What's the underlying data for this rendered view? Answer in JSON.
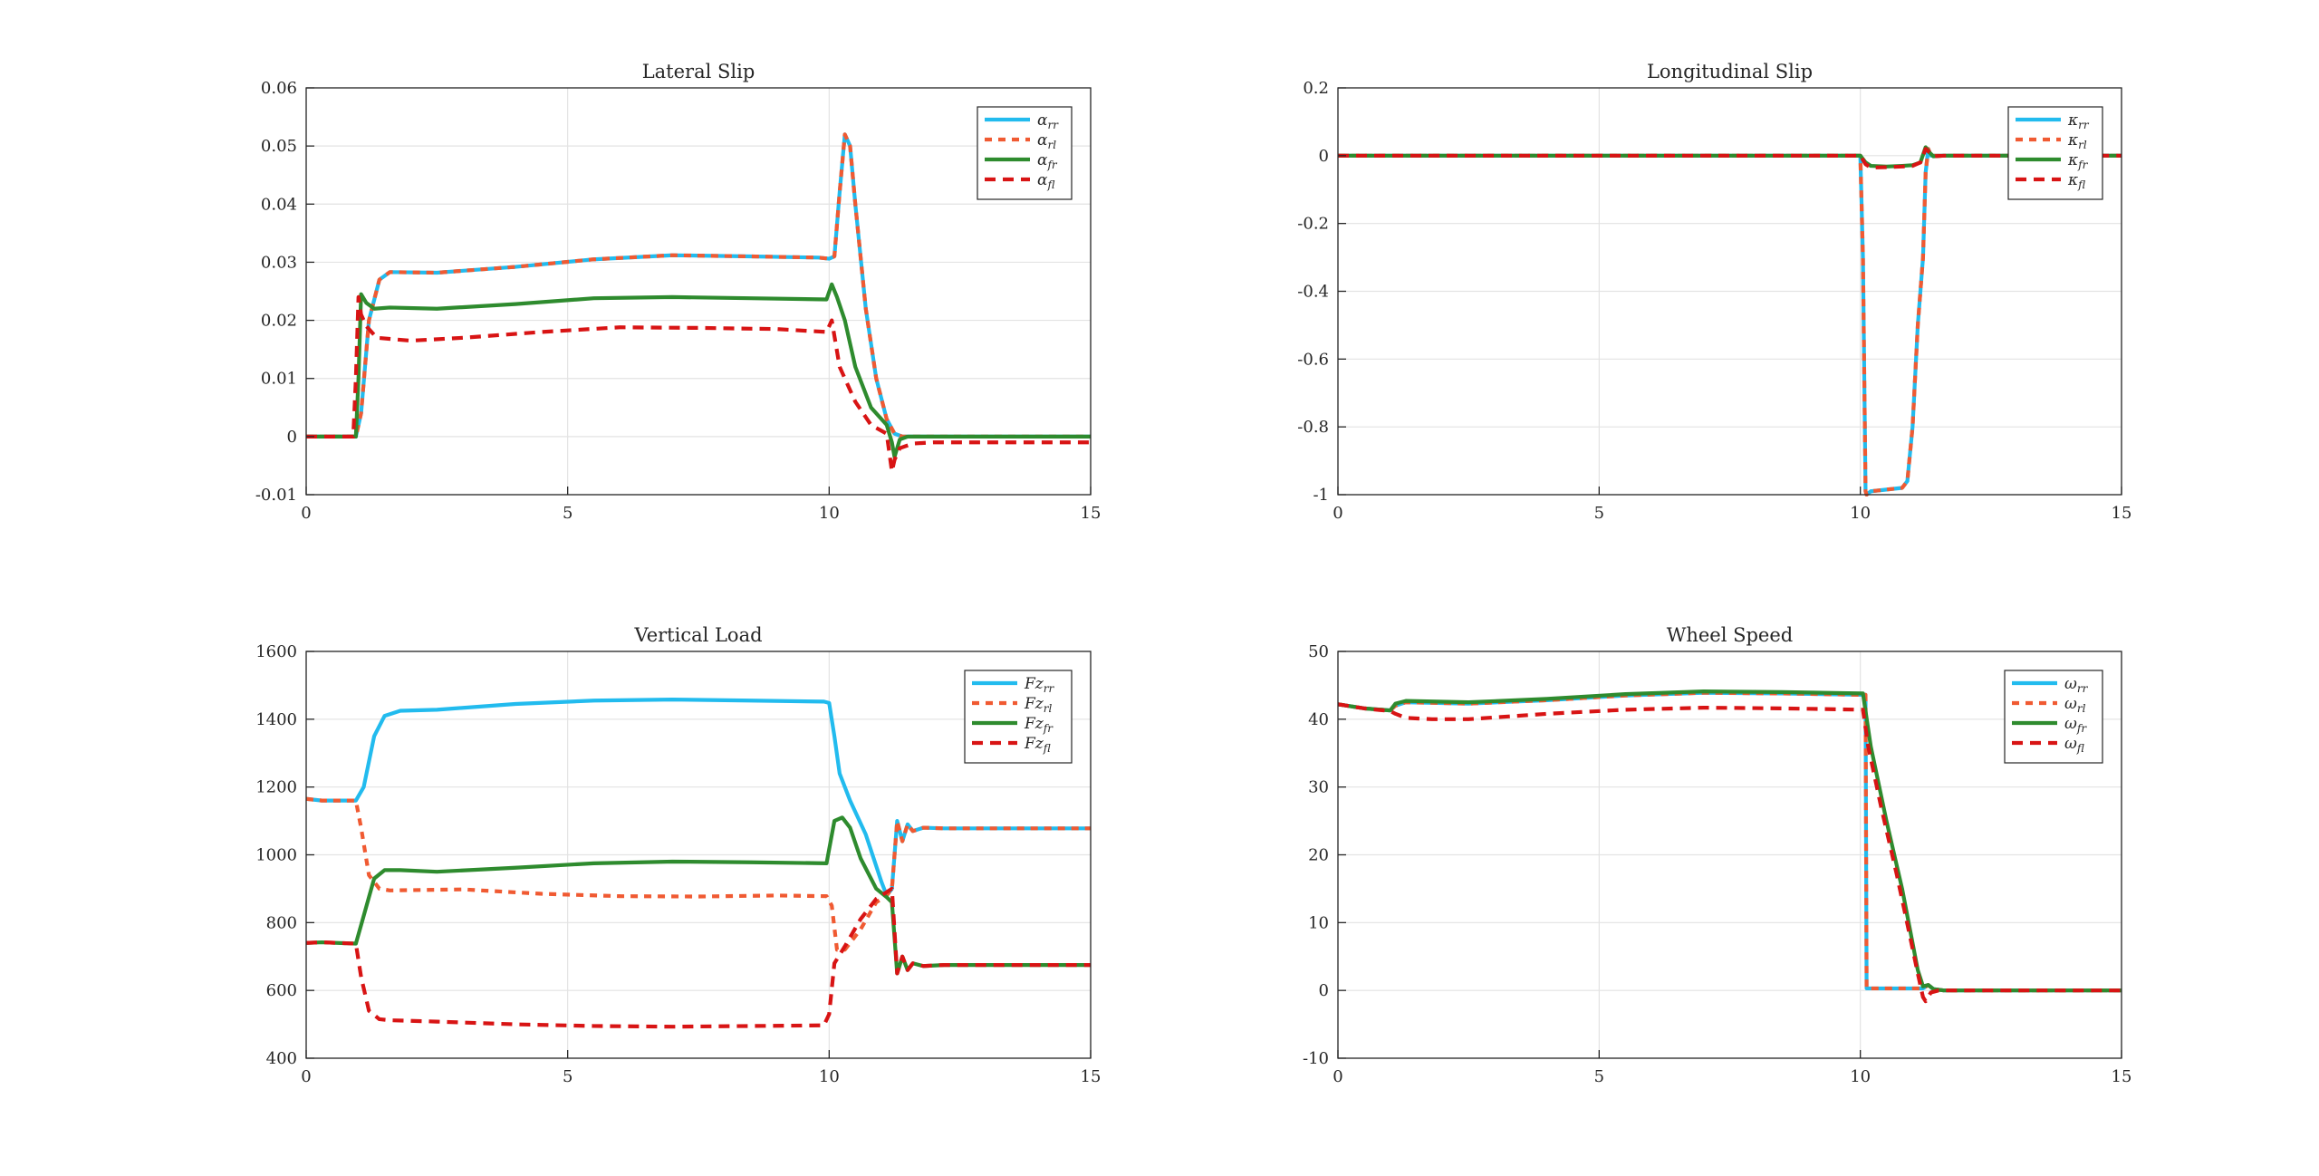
{
  "chart_data": [
    {
      "type": "line",
      "title": "Lateral Slip",
      "xlim": [
        0,
        15
      ],
      "ylim": [
        -0.01,
        0.06
      ],
      "xticks": [
        "0",
        "5",
        "10",
        "15"
      ],
      "yticks": [
        "-0.01",
        "0",
        "0.01",
        "0.02",
        "0.03",
        "0.04",
        "0.05",
        "0.06"
      ],
      "grid": true,
      "legend_position": "top-right",
      "series": [
        {
          "name": "α",
          "sub": "rr",
          "color": "#22bbee",
          "dash": "solid",
          "x": [
            0,
            0.95,
            1.05,
            1.2,
            1.4,
            1.6,
            2.5,
            4,
            5.5,
            7,
            8.5,
            9.8,
            10.0,
            10.1,
            10.2,
            10.3,
            10.4,
            10.5,
            10.7,
            10.9,
            11.1,
            11.25,
            11.4,
            11.7,
            12,
            15
          ],
          "y": [
            0,
            0,
            0.004,
            0.02,
            0.027,
            0.0283,
            0.0282,
            0.0292,
            0.0305,
            0.0312,
            0.031,
            0.0308,
            0.0306,
            0.031,
            0.042,
            0.052,
            0.05,
            0.04,
            0.022,
            0.01,
            0.003,
            0.0005,
            0,
            0,
            0,
            0
          ]
        },
        {
          "name": "α",
          "sub": "rl",
          "color": "#f05a32",
          "dash": "8,7",
          "x": [
            0,
            0.95,
            1.05,
            1.2,
            1.4,
            1.6,
            2.5,
            4,
            5.5,
            7,
            8.5,
            9.8,
            10.0,
            10.1,
            10.2,
            10.3,
            10.4,
            10.5,
            10.7,
            10.9,
            11.1,
            11.25,
            11.4,
            11.7,
            12,
            15
          ],
          "y": [
            0,
            0,
            0.004,
            0.02,
            0.027,
            0.0283,
            0.0282,
            0.0292,
            0.0305,
            0.0312,
            0.031,
            0.0308,
            0.0306,
            0.031,
            0.042,
            0.052,
            0.05,
            0.04,
            0.022,
            0.01,
            0.003,
            0.0005,
            0,
            0,
            0,
            0
          ]
        },
        {
          "name": "α",
          "sub": "fr",
          "color": "#2e8b2e",
          "dash": "solid",
          "x": [
            0,
            0.95,
            1.0,
            1.05,
            1.15,
            1.3,
            1.6,
            2.5,
            4,
            5.5,
            7,
            8.5,
            9.95,
            10.05,
            10.15,
            10.3,
            10.5,
            10.8,
            11.1,
            11.2,
            11.25,
            11.35,
            11.5,
            11.8,
            12.2,
            15
          ],
          "y": [
            0,
            0,
            0.01,
            0.0245,
            0.023,
            0.022,
            0.0222,
            0.022,
            0.0228,
            0.0238,
            0.024,
            0.0238,
            0.0236,
            0.0262,
            0.024,
            0.02,
            0.012,
            0.005,
            0.002,
            -0.001,
            -0.0035,
            -0.0005,
            0,
            0,
            0,
            0
          ]
        },
        {
          "name": "α",
          "sub": "fl",
          "color": "#d81414",
          "dash": "12,8",
          "x": [
            0,
            0.9,
            0.95,
            1.0,
            1.05,
            1.15,
            1.35,
            2,
            3,
            4.5,
            6,
            7.5,
            9,
            9.95,
            10.05,
            10.2,
            10.5,
            10.8,
            11.1,
            11.2,
            11.25,
            11.35,
            11.6,
            12,
            15
          ],
          "y": [
            0,
            0,
            0.01,
            0.024,
            0.021,
            0.019,
            0.017,
            0.0165,
            0.017,
            0.018,
            0.0188,
            0.0187,
            0.0185,
            0.018,
            0.02,
            0.012,
            0.006,
            0.002,
            0.0005,
            -0.006,
            -0.004,
            -0.002,
            -0.0012,
            -0.001,
            -0.001
          ]
        }
      ]
    },
    {
      "type": "line",
      "title": "Longitudinal Slip",
      "xlim": [
        0,
        15
      ],
      "ylim": [
        -1,
        0.2
      ],
      "xticks": [
        "0",
        "5",
        "10",
        "15"
      ],
      "yticks": [
        "-1",
        "-0.8",
        "-0.6",
        "-0.4",
        "-0.2",
        "0",
        "0.2"
      ],
      "grid": true,
      "legend_position": "top-right",
      "series": [
        {
          "name": "κ",
          "sub": "rr",
          "color": "#22bbee",
          "dash": "solid",
          "x": [
            0,
            10.0,
            10.05,
            10.1,
            10.12,
            10.2,
            10.5,
            10.8,
            10.9,
            11.0,
            11.1,
            11.2,
            11.25,
            11.3,
            11.35,
            11.5,
            12,
            15
          ],
          "y": [
            0,
            0,
            -0.3,
            -0.99,
            -1.0,
            -0.99,
            -0.985,
            -0.98,
            -0.96,
            -0.8,
            -0.5,
            -0.3,
            -0.05,
            0.02,
            0,
            0,
            0,
            0
          ]
        },
        {
          "name": "κ",
          "sub": "rl",
          "color": "#f05a32",
          "dash": "8,7",
          "x": [
            0,
            10.0,
            10.05,
            10.1,
            10.12,
            10.2,
            10.5,
            10.8,
            10.9,
            11.0,
            11.1,
            11.2,
            11.25,
            11.3,
            11.35,
            11.5,
            12,
            15
          ],
          "y": [
            0,
            0,
            -0.3,
            -0.99,
            -1.0,
            -0.99,
            -0.985,
            -0.98,
            -0.96,
            -0.8,
            -0.5,
            -0.3,
            -0.05,
            0.02,
            0,
            0,
            0,
            0
          ]
        },
        {
          "name": "κ",
          "sub": "fr",
          "color": "#2e8b2e",
          "dash": "solid",
          "x": [
            0,
            10.0,
            10.1,
            10.2,
            10.5,
            10.8,
            11.0,
            11.15,
            11.25,
            11.32,
            11.4,
            11.6,
            12,
            15
          ],
          "y": [
            0,
            0,
            -0.02,
            -0.03,
            -0.032,
            -0.03,
            -0.028,
            -0.02,
            0.025,
            0.01,
            -0.002,
            0,
            0,
            0
          ]
        },
        {
          "name": "κ",
          "sub": "fl",
          "color": "#d81414",
          "dash": "12,8",
          "x": [
            0,
            10.0,
            10.1,
            10.2,
            10.5,
            10.8,
            11.0,
            11.15,
            11.25,
            11.32,
            11.4,
            11.6,
            12,
            15
          ],
          "y": [
            0,
            0,
            -0.025,
            -0.035,
            -0.034,
            -0.032,
            -0.03,
            -0.02,
            0.02,
            0.01,
            -0.002,
            0,
            0,
            0
          ]
        }
      ]
    },
    {
      "type": "line",
      "title": "Vertical Load",
      "xlim": [
        0,
        15
      ],
      "ylim": [
        400,
        1600
      ],
      "xticks": [
        "0",
        "5",
        "10",
        "15"
      ],
      "yticks": [
        "400",
        "600",
        "800",
        "1000",
        "1200",
        "1400",
        "1600"
      ],
      "grid": true,
      "legend_position": "top-right",
      "series": [
        {
          "name": "Fz",
          "sub": "rr",
          "color": "#22bbee",
          "dash": "solid",
          "x": [
            0,
            0.3,
            0.95,
            1.1,
            1.3,
            1.5,
            1.8,
            2.5,
            4,
            5.5,
            7,
            8.5,
            9.9,
            10.0,
            10.1,
            10.2,
            10.4,
            10.7,
            11.0,
            11.1,
            11.2,
            11.3,
            11.4,
            11.5,
            11.6,
            11.8,
            12.2,
            15
          ],
          "y": [
            1165,
            1160,
            1160,
            1200,
            1350,
            1410,
            1425,
            1428,
            1445,
            1455,
            1458,
            1455,
            1452,
            1448,
            1350,
            1240,
            1160,
            1060,
            920,
            880,
            900,
            1100,
            1040,
            1090,
            1070,
            1080,
            1078,
            1078
          ]
        },
        {
          "name": "Fz",
          "sub": "rl",
          "color": "#f05a32",
          "dash": "8,7",
          "x": [
            0,
            0.3,
            0.95,
            1.05,
            1.2,
            1.4,
            1.6,
            3,
            4.5,
            6,
            7.5,
            9,
            9.95,
            10.05,
            10.15,
            10.3,
            10.6,
            10.9,
            11.1,
            11.2,
            11.3,
            11.4,
            11.5,
            11.6,
            11.8,
            12.2,
            15
          ],
          "y": [
            1165,
            1160,
            1160,
            1080,
            940,
            900,
            895,
            898,
            885,
            878,
            877,
            880,
            878,
            850,
            720,
            720,
            780,
            860,
            880,
            900,
            1100,
            1040,
            1090,
            1070,
            1080,
            1078,
            1078
          ]
        },
        {
          "name": "Fz",
          "sub": "fr",
          "color": "#2e8b2e",
          "dash": "solid",
          "x": [
            0,
            0.3,
            0.95,
            1.1,
            1.3,
            1.5,
            1.8,
            2.5,
            4,
            5.5,
            7,
            8.5,
            9.95,
            10.1,
            10.25,
            10.4,
            10.6,
            10.9,
            11.1,
            11.2,
            11.3,
            11.4,
            11.5,
            11.6,
            11.8,
            12.2,
            15
          ],
          "y": [
            740,
            742,
            738,
            820,
            930,
            955,
            955,
            950,
            962,
            975,
            980,
            978,
            975,
            1100,
            1110,
            1080,
            990,
            900,
            875,
            860,
            650,
            700,
            660,
            680,
            672,
            675,
            675
          ]
        },
        {
          "name": "Fz",
          "sub": "fl",
          "color": "#d81414",
          "dash": "12,8",
          "x": [
            0,
            0.3,
            0.95,
            1.05,
            1.2,
            1.4,
            1.6,
            2.5,
            4,
            5.5,
            7,
            8.5,
            9.9,
            10.0,
            10.1,
            10.3,
            10.6,
            10.9,
            11.1,
            11.2,
            11.3,
            11.4,
            11.5,
            11.6,
            11.8,
            12.2,
            15
          ],
          "y": [
            740,
            742,
            738,
            640,
            540,
            515,
            512,
            508,
            500,
            495,
            493,
            495,
            497,
            530,
            680,
            730,
            810,
            870,
            890,
            900,
            650,
            700,
            660,
            680,
            672,
            675,
            675
          ]
        }
      ]
    },
    {
      "type": "line",
      "title": "Wheel Speed",
      "xlim": [
        0,
        15
      ],
      "ylim": [
        -10,
        50
      ],
      "xticks": [
        "0",
        "5",
        "10",
        "15"
      ],
      "yticks": [
        "-10",
        "0",
        "10",
        "20",
        "30",
        "40",
        "50"
      ],
      "grid": true,
      "legend_position": "top-right",
      "series": [
        {
          "name": "ω",
          "sub": "rr",
          "color": "#22bbee",
          "dash": "solid",
          "x": [
            0,
            0.5,
            1.0,
            1.1,
            1.3,
            2.5,
            4,
            5.5,
            7,
            8.5,
            10.0,
            10.1,
            10.12,
            10.15,
            11.0,
            11.2,
            11.3,
            11.4,
            11.6,
            15
          ],
          "y": [
            42.2,
            41.6,
            41.3,
            42.0,
            42.5,
            42.3,
            42.8,
            43.5,
            43.9,
            43.8,
            43.6,
            43.6,
            0.3,
            0.3,
            0.3,
            0.3,
            0.8,
            0.2,
            0,
            0
          ]
        },
        {
          "name": "ω",
          "sub": "rl",
          "color": "#f05a32",
          "dash": "8,7",
          "x": [
            0,
            0.5,
            1.0,
            1.1,
            1.3,
            2.5,
            4,
            5.5,
            7,
            8.5,
            10.0,
            10.1,
            10.12,
            10.15,
            11.0,
            11.2,
            11.3,
            11.4,
            11.6,
            15
          ],
          "y": [
            42.2,
            41.6,
            41.3,
            42.0,
            42.5,
            42.3,
            42.8,
            43.5,
            43.9,
            43.8,
            43.6,
            43.6,
            0.3,
            0.3,
            0.3,
            0.3,
            0.8,
            0.2,
            0,
            0
          ]
        },
        {
          "name": "ω",
          "sub": "fr",
          "color": "#2e8b2e",
          "dash": "solid",
          "x": [
            0,
            0.5,
            1.0,
            1.1,
            1.3,
            2.5,
            4,
            5.5,
            7,
            8.5,
            10.05,
            10.2,
            10.5,
            10.8,
            11.0,
            11.1,
            11.2,
            11.3,
            11.4,
            11.6,
            12,
            15
          ],
          "y": [
            42.2,
            41.6,
            41.3,
            42.3,
            42.7,
            42.5,
            43.0,
            43.7,
            44.1,
            44.0,
            43.8,
            36,
            25,
            15,
            7,
            3,
            0.6,
            0.8,
            0.2,
            0,
            0,
            0
          ]
        },
        {
          "name": "ω",
          "sub": "fl",
          "color": "#d81414",
          "dash": "12,8",
          "x": [
            0,
            0.5,
            1.0,
            1.1,
            1.3,
            1.8,
            2.5,
            4,
            5.5,
            7,
            8.5,
            10.05,
            10.15,
            10.4,
            10.7,
            10.95,
            11.1,
            11.2,
            11.25,
            11.35,
            11.5,
            12,
            15
          ],
          "y": [
            42.2,
            41.6,
            41.2,
            40.8,
            40.2,
            40.0,
            40.0,
            40.8,
            41.4,
            41.7,
            41.6,
            41.4,
            36,
            27,
            17,
            8,
            2.5,
            -1.0,
            -1.6,
            -0.3,
            0,
            0,
            0
          ]
        }
      ]
    }
  ]
}
